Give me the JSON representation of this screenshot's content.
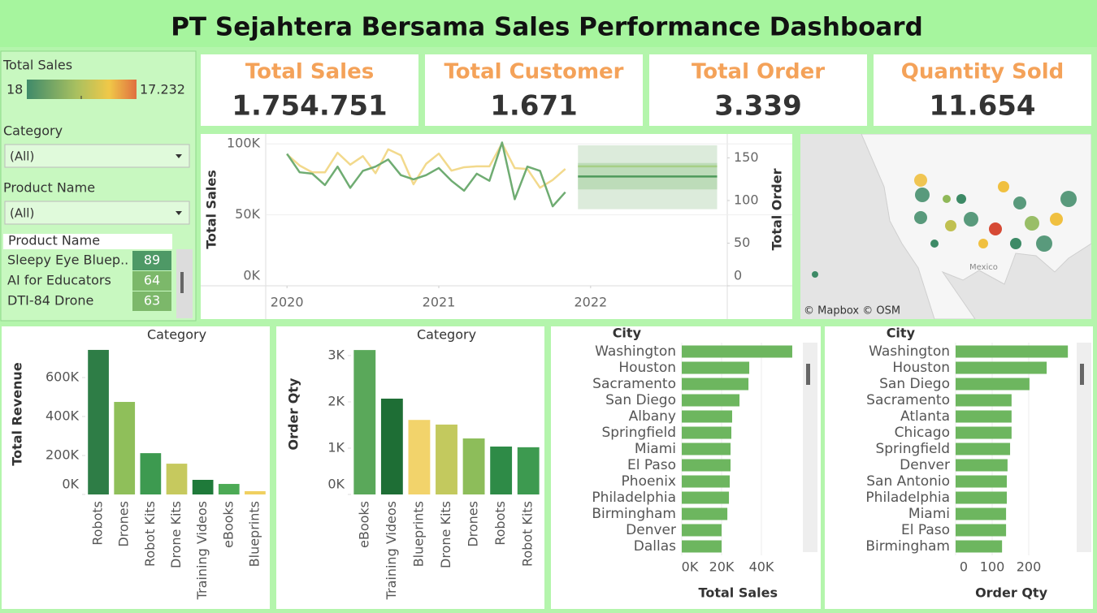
{
  "title": "PT Sejahtera Bersama Sales Performance Dashboard",
  "filters": {
    "legend": {
      "title": "Total Sales",
      "min": "18",
      "max": "17.232"
    },
    "category": {
      "label": "Category",
      "value": "(All)"
    },
    "product": {
      "label": "Product Name",
      "value": "(All)"
    }
  },
  "product_table": {
    "header": "Product Name",
    "rows": [
      [
        "Sleepy Eye Bluep..",
        89
      ],
      [
        "AI for Educators",
        64
      ],
      [
        "DTI-84 Drone",
        63
      ]
    ],
    "colors": [
      "#4e9966",
      "#7cb86a",
      "#7cb86a"
    ]
  },
  "kpis": [
    {
      "label": "Total Sales",
      "value": "1.754.751"
    },
    {
      "label": "Total Customer",
      "value": "1.671"
    },
    {
      "label": "Total Order",
      "value": "3.339"
    },
    {
      "label": "Quantity Sold",
      "value": "11.654"
    }
  ],
  "map": {
    "credit": "© Mapbox © OSM",
    "labels": [
      "Mexico"
    ]
  },
  "chart_data": [
    {
      "type": "line",
      "y_label": "Total Sales",
      "y2_label": "Total Order",
      "x": [
        "2020-01",
        "2020-02",
        "2020-03",
        "2020-04",
        "2020-05",
        "2020-06",
        "2020-07",
        "2020-08",
        "2020-09",
        "2020-10",
        "2020-11",
        "2020-12",
        "2021-01",
        "2021-02",
        "2021-03",
        "2021-04",
        "2021-05",
        "2021-06",
        "2021-07",
        "2021-08",
        "2021-09",
        "2021-10",
        "2021-11"
      ],
      "xlim": [
        2019.86,
        2022.9
      ],
      "xticks": [
        2020,
        2021,
        2022
      ],
      "ylim": [
        0,
        107000
      ],
      "yticks": [
        {
          "value": 0,
          "label": "0K"
        },
        {
          "value": 50000,
          "label": "50K"
        },
        {
          "value": 100000,
          "label": "100K"
        }
      ],
      "y2lim": [
        0,
        178
      ],
      "y2ticks": [
        0,
        50,
        100,
        150
      ],
      "grid": true,
      "series": [
        {
          "color": "#6fac72",
          "values": [
            93000,
            80000,
            79000,
            71000,
            84000,
            69000,
            81000,
            84000,
            89000,
            78000,
            75000,
            78000,
            83000,
            74000,
            67000,
            79000,
            74000,
            101000,
            61000,
            84000,
            81000,
            56000,
            66000
          ]
        },
        {
          "color": "#f2d98c",
          "axis": "y2",
          "values": [
            154,
            141,
            133,
            133,
            156,
            142,
            152,
            132,
            160,
            153,
            119,
            143,
            155,
            135,
            139,
            140,
            140,
            167,
            138,
            137,
            115,
            124,
            137
          ]
        }
      ],
      "forecast": {
        "x": [
          "2021-12",
          "2022-11"
        ],
        "series": [
          {
            "color": "#4e9a5a",
            "band_color": "#d3e6d2",
            "values": [
              77000,
              77000
            ],
            "band": [
              54000,
              99000
            ]
          },
          {
            "color": "#a6cf86",
            "band_color": "#b5d8b0",
            "axis": "y2",
            "values": [
              140,
              140
            ],
            "band": [
              113,
              144
            ]
          }
        ]
      }
    },
    {
      "type": "bar",
      "title": "Category",
      "y_label": "Total Revenue",
      "categories": [
        "Robots",
        "Drones",
        "Robot Kits",
        "Drone Kits",
        "Training Videos",
        "eBooks",
        "Blueprints"
      ],
      "values": [
        742000,
        475000,
        212000,
        158000,
        75000,
        54000,
        17000
      ],
      "colors": [
        "#2e7d46",
        "#8fbf5a",
        "#3d9a50",
        "#c6c95e",
        "#1f7a3a",
        "#4caa55",
        "#f0d060"
      ],
      "ylim": [
        0,
        796000
      ],
      "yticks": [
        {
          "value": 0,
          "label": "0K"
        },
        {
          "value": 200000,
          "label": "200K"
        },
        {
          "value": 400000,
          "label": "400K"
        },
        {
          "value": 600000,
          "label": "600K"
        }
      ]
    },
    {
      "type": "bar",
      "title": "Category",
      "y_label": "Order Qty",
      "categories": [
        "eBooks",
        "Training Videos",
        "Blueprints",
        "Drone Kits",
        "Drones",
        "Robots",
        "Robot Kits"
      ],
      "values": [
        3120,
        2070,
        1610,
        1510,
        1210,
        1035,
        1020
      ],
      "colors": [
        "#5aa85a",
        "#1e6e35",
        "#f2d36b",
        "#c3c95e",
        "#8dbd5a",
        "#2e8b47",
        "#3d9a50"
      ],
      "ylim": [
        0,
        3350
      ],
      "yticks": [
        {
          "value": 0,
          "label": "0K"
        },
        {
          "value": 1000,
          "label": "1K"
        },
        {
          "value": 2000,
          "label": "2K"
        },
        {
          "value": 3000,
          "label": "3K"
        }
      ]
    },
    {
      "type": "hbar",
      "y_label": "City",
      "x_label": "Total Sales",
      "categories": [
        "Washington",
        "Houston",
        "Sacramento",
        "San Diego",
        "Albany",
        "Springfield",
        "Miami",
        "El Paso",
        "Phoenix",
        "Philadelphia",
        "Birmingham",
        "Denver",
        "Dallas"
      ],
      "values": [
        55500,
        33900,
        33500,
        29000,
        25300,
        24900,
        24500,
        24500,
        24100,
        23700,
        22900,
        20000,
        20000
      ],
      "color": "#6db65f",
      "xlim": [
        0,
        60000
      ],
      "xticks": [
        {
          "value": 0,
          "label": "0K"
        },
        {
          "value": 20000,
          "label": "20K"
        },
        {
          "value": 40000,
          "label": "40K"
        }
      ]
    },
    {
      "type": "hbar",
      "y_label": "City",
      "x_label": "Order Qty",
      "categories": [
        "Washington",
        "Houston",
        "San Diego",
        "Sacramento",
        "Atlanta",
        "Chicago",
        "Springfield",
        "Denver",
        "San Antonio",
        "Philadelphia",
        "Miami",
        "El Paso",
        "Birmingham"
      ],
      "values": [
        307,
        249,
        202,
        153,
        153,
        153,
        149,
        142,
        140,
        140,
        138,
        138,
        127
      ],
      "color": "#6db65f",
      "xlim": [
        0,
        330
      ],
      "xticks": [
        0,
        100,
        200
      ]
    }
  ]
}
